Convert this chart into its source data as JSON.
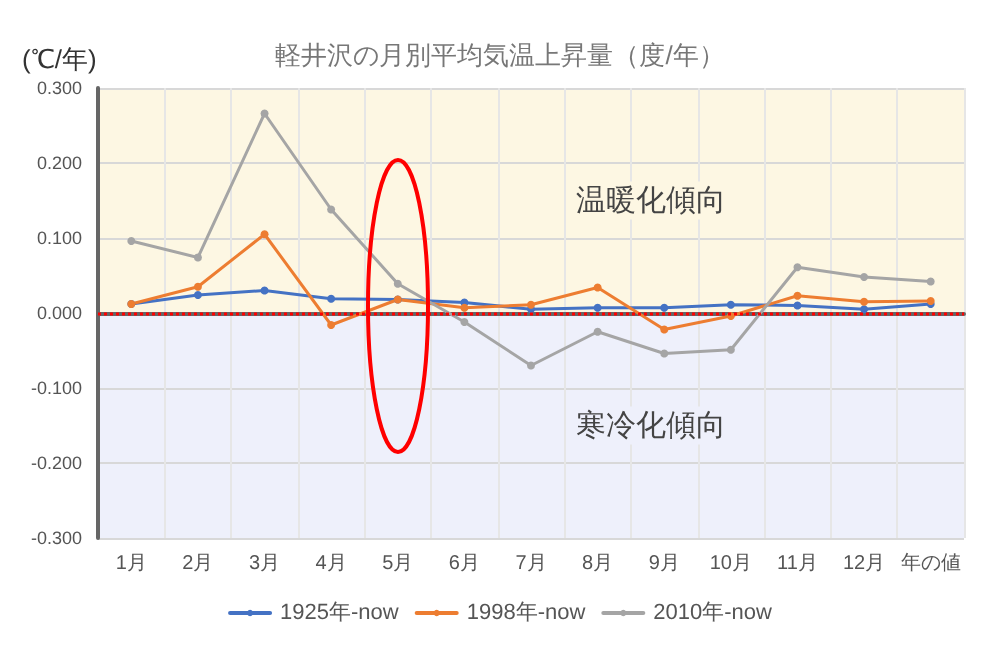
{
  "chart_data": {
    "type": "line",
    "title": "軽井沢の月別平均気温上昇量（度/年）",
    "ylabel": "(℃/年)",
    "categories": [
      "1月",
      "2月",
      "3月",
      "4月",
      "5月",
      "6月",
      "7月",
      "8月",
      "9月",
      "10月",
      "11月",
      "12月",
      "年の値"
    ],
    "series": [
      {
        "name": "1925年-now",
        "color": "#4472c4",
        "values": [
          0.012,
          0.024,
          0.03,
          0.019,
          0.018,
          0.014,
          0.005,
          0.007,
          0.007,
          0.011,
          0.01,
          0.005,
          0.012
        ]
      },
      {
        "name": "1998年-now",
        "color": "#ed7d31",
        "values": [
          0.012,
          0.035,
          0.105,
          -0.016,
          0.018,
          0.007,
          0.011,
          0.034,
          -0.022,
          -0.004,
          0.023,
          0.015,
          0.016
        ]
      },
      {
        "name": "2010年-now",
        "color": "#a5a5a5",
        "values": [
          0.096,
          0.074,
          0.266,
          0.138,
          0.039,
          -0.012,
          -0.07,
          -0.025,
          -0.054,
          -0.049,
          0.061,
          0.048,
          0.042
        ]
      }
    ],
    "ylim": [
      -0.3,
      0.3
    ],
    "yticks": [
      {
        "value": -0.3,
        "label": "-0.300"
      },
      {
        "value": -0.2,
        "label": "-0.200"
      },
      {
        "value": -0.1,
        "label": "-0.100"
      },
      {
        "value": 0,
        "label": "0.000"
      },
      {
        "value": 0.1,
        "label": "0.100"
      },
      {
        "value": 0.2,
        "label": "0.200"
      },
      {
        "value": 0.3,
        "label": "0.300"
      }
    ],
    "bands": [
      {
        "axis": "y",
        "from": 0,
        "to": 0.3,
        "label": "温暖化傾向",
        "color": "#fdf7e3"
      },
      {
        "axis": "y",
        "from": -0.3,
        "to": 0,
        "label": "寒冷化傾向",
        "color": "#eef0fb"
      }
    ],
    "ref_lines": [
      {
        "axis": "y",
        "value": 0,
        "color": "#ff0000",
        "line_style": "dotted"
      }
    ],
    "grid": true,
    "legend": "bottom",
    "marker": "circle",
    "line_style": "solid"
  }
}
